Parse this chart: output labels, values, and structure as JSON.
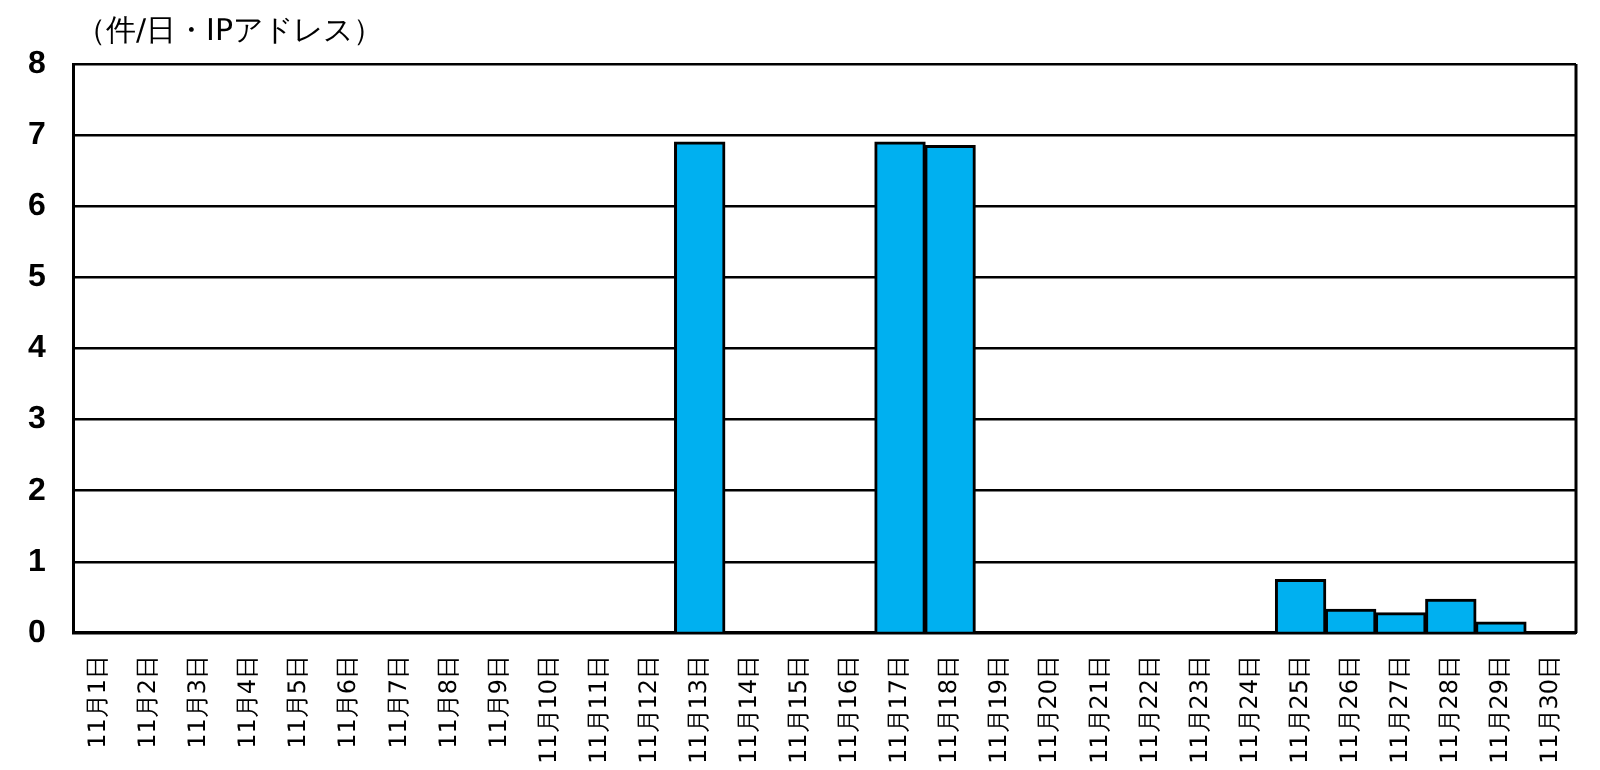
{
  "chart_data": {
    "type": "bar",
    "ylabel": "（件/日・IPアドレス）",
    "categories": [
      "11月1日",
      "11月2日",
      "11月3日",
      "11月4日",
      "11月5日",
      "11月6日",
      "11月7日",
      "11月8日",
      "11月9日",
      "11月10日",
      "11月11日",
      "11月12日",
      "11月13日",
      "11月14日",
      "11月15日",
      "11月16日",
      "11月17日",
      "11月18日",
      "11月19日",
      "11月20日",
      "11月21日",
      "11月22日",
      "11月23日",
      "11月24日",
      "11月25日",
      "11月26日",
      "11月27日",
      "11月28日",
      "11月29日",
      "11月30日"
    ],
    "values": [
      0,
      0,
      0,
      0,
      0,
      0,
      0,
      0,
      0,
      0,
      0,
      0,
      6.9,
      0,
      0,
      0,
      6.9,
      6.85,
      0,
      0,
      0,
      0,
      0,
      0,
      0.75,
      0.33,
      0.28,
      0.47,
      0.15,
      0
    ],
    "color": "#00b0f0",
    "ylim": [
      0,
      8
    ],
    "yticks": [
      0,
      1,
      2,
      3,
      4,
      5,
      6,
      7,
      8
    ],
    "grid": "y",
    "legend": false
  }
}
